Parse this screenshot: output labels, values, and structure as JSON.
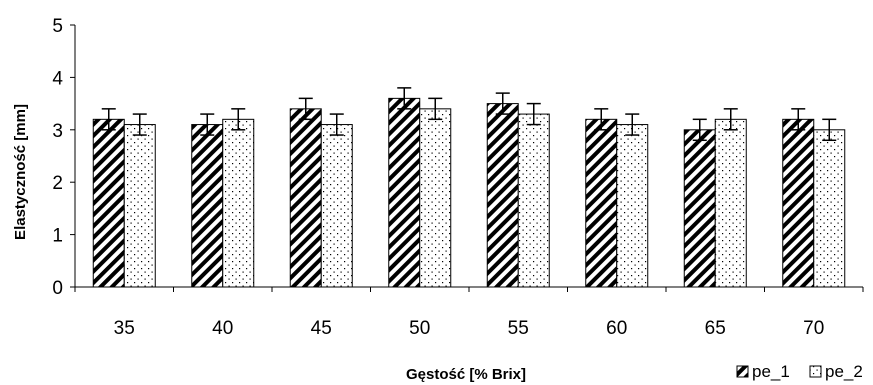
{
  "chart_data": {
    "type": "bar",
    "xlabel": "Gęstość [% Brix]",
    "ylabel": "Elastyczność [mm]",
    "categories": [
      "35",
      "40",
      "45",
      "50",
      "55",
      "60",
      "65",
      "70"
    ],
    "series": [
      {
        "name": "pe_1",
        "values": [
          3.2,
          3.1,
          3.4,
          3.6,
          3.5,
          3.2,
          3.0,
          3.2
        ],
        "error": [
          0.2,
          0.2,
          0.2,
          0.2,
          0.2,
          0.2,
          0.2,
          0.2
        ],
        "pattern": "diagonal-hatch"
      },
      {
        "name": "pe_2",
        "values": [
          3.1,
          3.2,
          3.1,
          3.4,
          3.3,
          3.1,
          3.2,
          3.0
        ],
        "error": [
          0.2,
          0.2,
          0.2,
          0.2,
          0.2,
          0.2,
          0.2,
          0.2
        ],
        "pattern": "dotted"
      }
    ],
    "ylim": [
      0,
      5
    ],
    "yticks": [
      "0",
      "1",
      "2",
      "3",
      "4",
      "5"
    ],
    "grid": false,
    "legend_position": "bottom-right",
    "error_bars": true
  }
}
